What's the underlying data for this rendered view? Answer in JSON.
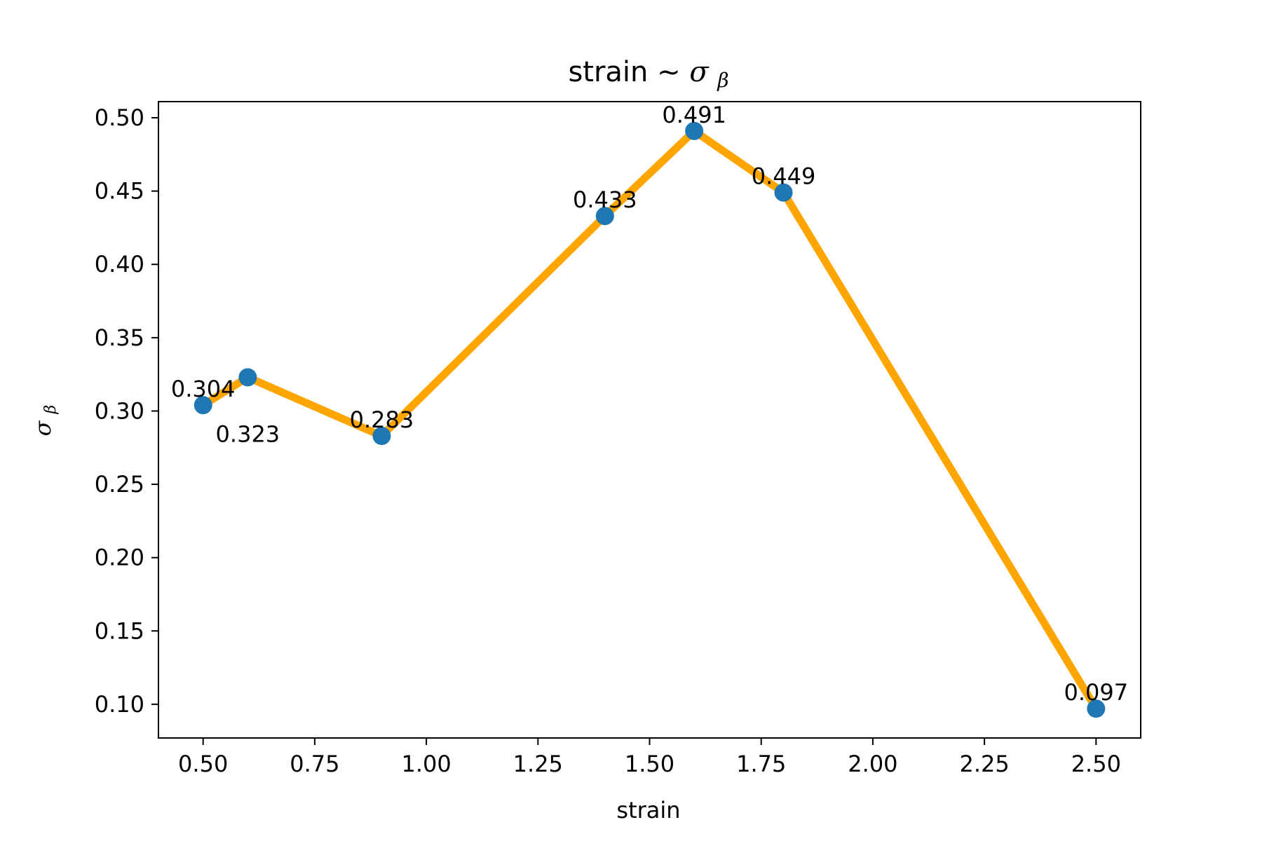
{
  "chart_data": {
    "type": "line",
    "title": {
      "prefix": "strain ~ ",
      "symbol": "σ",
      "subscript": "β"
    },
    "xlabel": "strain",
    "ylabel": {
      "symbol": "σ",
      "subscript": "β"
    },
    "xlim": [
      0.4,
      2.6
    ],
    "ylim": [
      0.077,
      0.511
    ],
    "xticks": [
      "0.50",
      "0.75",
      "1.00",
      "1.25",
      "1.50",
      "1.75",
      "2.00",
      "2.25",
      "2.50"
    ],
    "yticks": [
      "0.10",
      "0.15",
      "0.20",
      "0.25",
      "0.30",
      "0.35",
      "0.40",
      "0.45",
      "0.50"
    ],
    "grid": false,
    "series": [
      {
        "x": [
          0.5,
          0.6,
          0.9,
          1.4,
          1.6,
          1.8,
          2.5
        ],
        "y": [
          0.304,
          0.323,
          0.283,
          0.433,
          0.491,
          0.449,
          0.097
        ],
        "labels": [
          "0.304",
          "0.323",
          "0.283",
          "0.433",
          "0.491",
          "0.449",
          "0.097"
        ],
        "line_color": "#FFA500",
        "marker_color": "#1F77B4"
      }
    ]
  }
}
